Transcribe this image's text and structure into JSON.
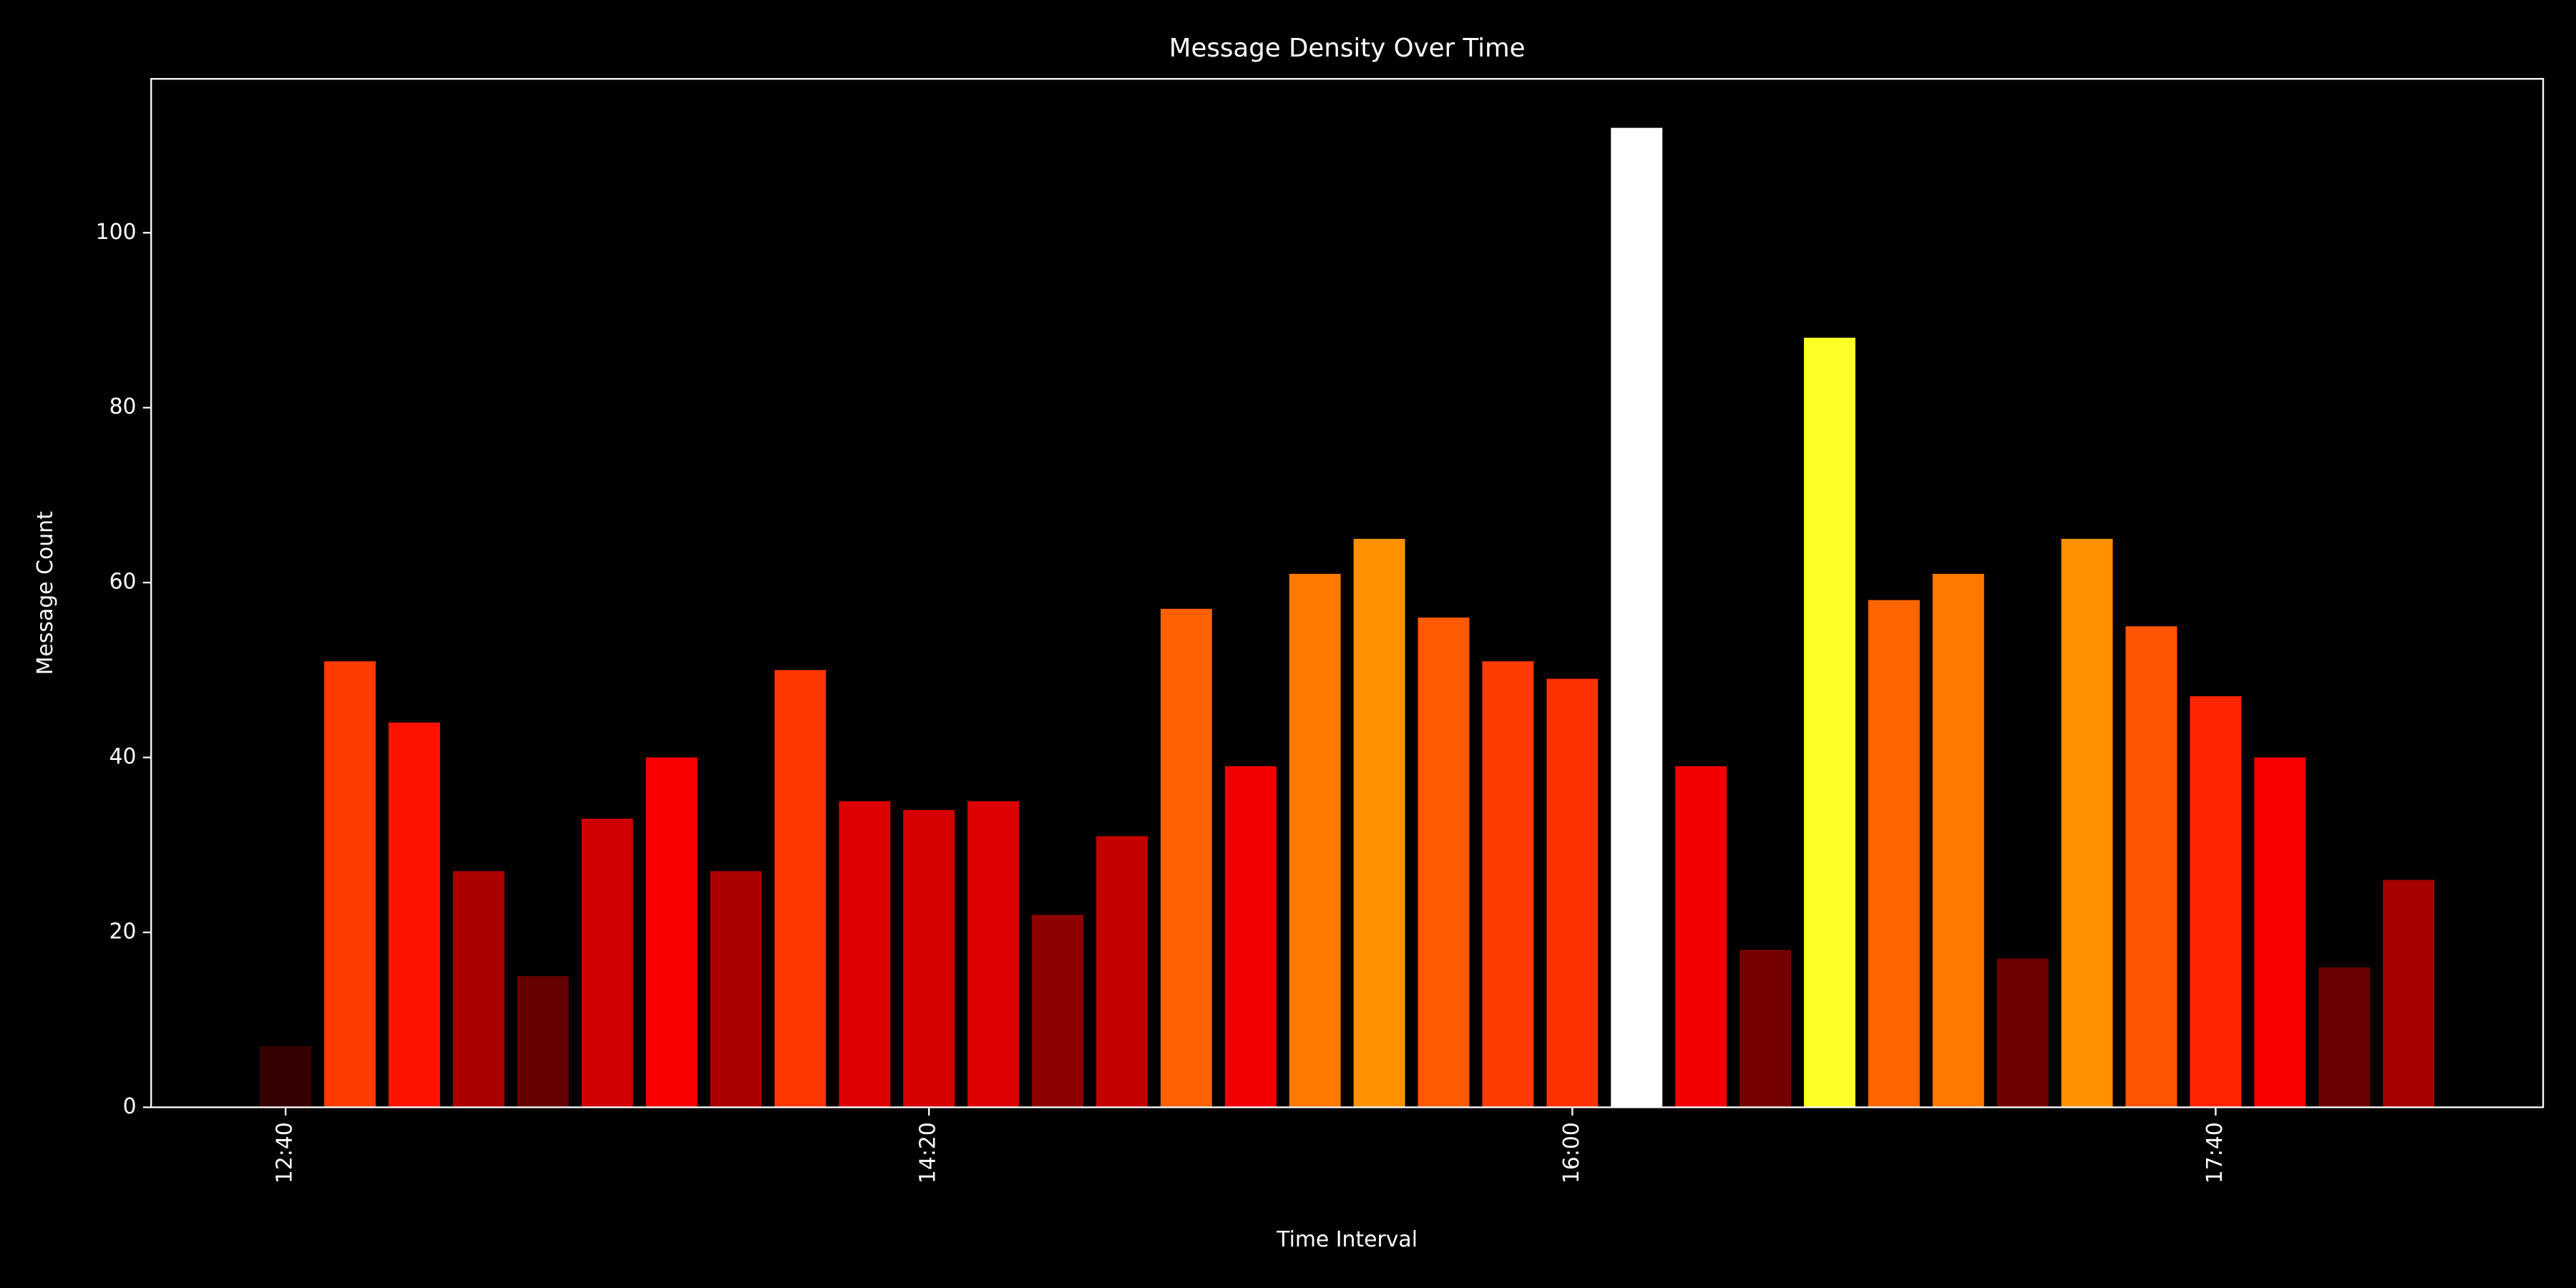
{
  "chart_data": {
    "type": "bar",
    "title": "Message Density Over Time",
    "x_label": "Time Interval",
    "y_label": "Message Count",
    "categories": [
      "12:40",
      null,
      null,
      null,
      null,
      null,
      null,
      null,
      null,
      null,
      "14:20",
      null,
      null,
      null,
      null,
      null,
      null,
      null,
      null,
      null,
      "16:00",
      null,
      null,
      null,
      null,
      null,
      null,
      null,
      null,
      null,
      "17:40",
      null,
      null,
      null
    ],
    "values": [
      7,
      51,
      44,
      27,
      15,
      33,
      40,
      27,
      50,
      35,
      34,
      35,
      22,
      31,
      57,
      39,
      61,
      65,
      56,
      51,
      49,
      112,
      39,
      18,
      88,
      58,
      61,
      17,
      65,
      55,
      47,
      40,
      16,
      26
    ],
    "colormap": "hot",
    "ylim": [
      0,
      117.6
    ],
    "yticks": [
      0,
      20,
      40,
      60,
      80,
      100
    ],
    "grid": false
  }
}
